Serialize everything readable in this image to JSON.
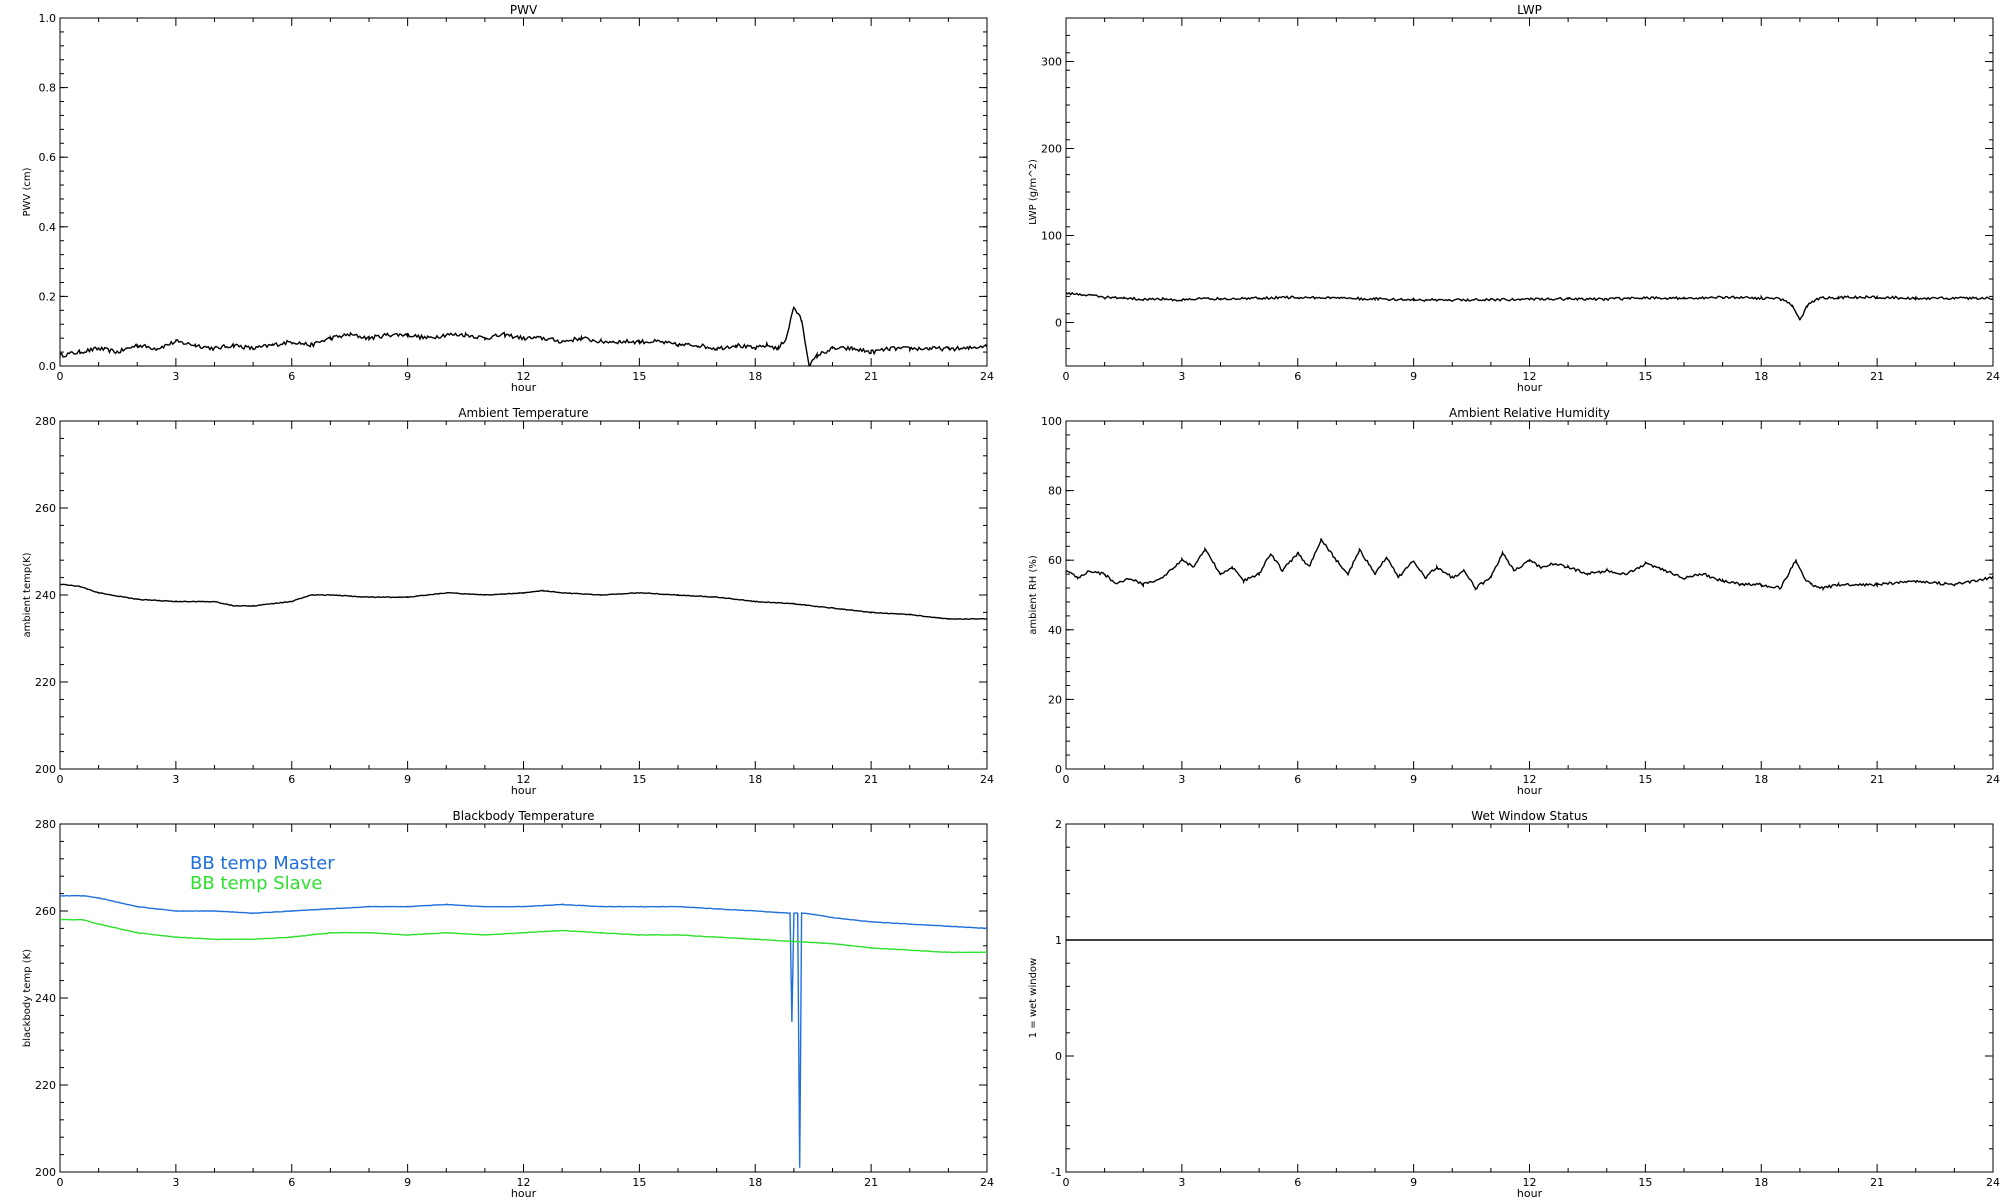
{
  "chart_data": [
    {
      "id": "pwv",
      "type": "line",
      "title": "PWV",
      "xlabel": "hour",
      "ylabel": "PWV (cm)",
      "xlim": [
        0,
        24
      ],
      "ylim": [
        0,
        1.0
      ],
      "xticks": [
        "0",
        "3",
        "6",
        "9",
        "12",
        "15",
        "18",
        "21",
        "24"
      ],
      "yticks": [
        "0.0",
        "0.2",
        "0.4",
        "0.6",
        "0.8",
        "1.0"
      ],
      "series": [
        {
          "color": "#000000",
          "noise": 0.006,
          "x": [
            0,
            0.5,
            1,
            1.5,
            2,
            2.5,
            3,
            3.5,
            4,
            4.5,
            5,
            5.5,
            6,
            6.5,
            7,
            7.5,
            8,
            8.5,
            9,
            9.5,
            10,
            10.5,
            11,
            11.5,
            12,
            12.5,
            13,
            13.5,
            14,
            14.5,
            15,
            15.5,
            16,
            16.5,
            17,
            17.5,
            18,
            18.3,
            18.6,
            18.8,
            19.0,
            19.2,
            19.4,
            19.6,
            20,
            20.5,
            21,
            21.5,
            22,
            22.5,
            23,
            23.5,
            24
          ],
          "y": [
            0.03,
            0.04,
            0.05,
            0.04,
            0.06,
            0.05,
            0.07,
            0.06,
            0.05,
            0.06,
            0.05,
            0.06,
            0.07,
            0.06,
            0.08,
            0.09,
            0.08,
            0.09,
            0.09,
            0.08,
            0.09,
            0.09,
            0.08,
            0.09,
            0.08,
            0.08,
            0.07,
            0.08,
            0.07,
            0.07,
            0.07,
            0.07,
            0.06,
            0.06,
            0.05,
            0.06,
            0.05,
            0.06,
            0.05,
            0.08,
            0.17,
            0.13,
            0.0,
            0.03,
            0.05,
            0.05,
            0.04,
            0.05,
            0.05,
            0.05,
            0.05,
            0.05,
            0.06
          ]
        }
      ]
    },
    {
      "id": "lwp",
      "type": "line",
      "title": "LWP",
      "xlabel": "hour",
      "ylabel": "LWP (g/m^2)",
      "xlim": [
        0,
        24
      ],
      "ylim": [
        -50,
        350
      ],
      "xticks": [
        "0",
        "3",
        "6",
        "9",
        "12",
        "15",
        "18",
        "21",
        "24"
      ],
      "yticks": [
        "0",
        "100",
        "200",
        "300"
      ],
      "series": [
        {
          "color": "#000000",
          "noise": 1.5,
          "x": [
            0,
            0.5,
            1,
            1.5,
            2,
            2.5,
            3,
            3.5,
            4,
            5,
            6,
            7,
            8,
            9,
            10,
            11,
            12,
            13,
            14,
            15,
            16,
            17,
            18,
            18.5,
            18.8,
            19.0,
            19.2,
            19.5,
            20,
            21,
            22,
            23,
            24
          ],
          "y": [
            33,
            32,
            29,
            28,
            27,
            27,
            26,
            28,
            27,
            28,
            29,
            28,
            27,
            26,
            26,
            26,
            27,
            27,
            27,
            28,
            28,
            29,
            28,
            27,
            20,
            2,
            20,
            28,
            29,
            29,
            28,
            28,
            28
          ]
        }
      ]
    },
    {
      "id": "ambient_temp",
      "type": "line",
      "title": "Ambient Temperature",
      "xlabel": "hour",
      "ylabel": "ambient temp(K)",
      "xlim": [
        0,
        24
      ],
      "ylim": [
        200,
        280
      ],
      "xticks": [
        "0",
        "3",
        "6",
        "9",
        "12",
        "15",
        "18",
        "21",
        "24"
      ],
      "yticks": [
        "200",
        "220",
        "240",
        "260",
        "280"
      ],
      "series": [
        {
          "color": "#000000",
          "noise": 0.08,
          "x": [
            0,
            0.5,
            1,
            2,
            3,
            4,
            4.5,
            5,
            6,
            6.5,
            7,
            8,
            9,
            10,
            11,
            12,
            12.5,
            13,
            14,
            15,
            16,
            17,
            18,
            19,
            20,
            21,
            22,
            23,
            24
          ],
          "y": [
            242.5,
            242,
            240.5,
            239,
            238.5,
            238.5,
            237.5,
            237.5,
            238.5,
            240,
            240,
            239.5,
            239.5,
            240.5,
            240,
            240.5,
            241,
            240.5,
            240,
            240.5,
            240,
            239.5,
            238.5,
            238,
            237,
            236,
            235.5,
            234.5,
            234.5
          ]
        }
      ]
    },
    {
      "id": "ambient_rh",
      "type": "line",
      "title": "Ambient Relative Humidity",
      "xlabel": "hour",
      "ylabel": "ambient RH (%)",
      "xlim": [
        0,
        24
      ],
      "ylim": [
        0,
        100
      ],
      "xticks": [
        "0",
        "3",
        "6",
        "9",
        "12",
        "15",
        "18",
        "21",
        "24"
      ],
      "yticks": [
        "0",
        "20",
        "40",
        "60",
        "80",
        "100"
      ],
      "series": [
        {
          "color": "#000000",
          "noise": 0.4,
          "x": [
            0,
            0.3,
            0.6,
            1,
            1.3,
            1.6,
            2,
            2.5,
            3,
            3.3,
            3.6,
            4,
            4.3,
            4.6,
            5,
            5.3,
            5.6,
            6,
            6.3,
            6.6,
            7,
            7.3,
            7.6,
            8,
            8.3,
            8.6,
            9,
            9.3,
            9.6,
            10,
            10.3,
            10.6,
            11,
            11.3,
            11.6,
            12,
            12.3,
            12.6,
            13,
            13.5,
            14,
            14.5,
            15,
            15.5,
            16,
            16.5,
            17,
            17.5,
            18,
            18.5,
            18.9,
            19.1,
            19.3,
            19.6,
            20,
            21,
            22,
            23,
            24
          ],
          "y": [
            57,
            55,
            57,
            56,
            53,
            55,
            53,
            55,
            60,
            58,
            63,
            56,
            58,
            54,
            56,
            62,
            57,
            62,
            58,
            66,
            60,
            56,
            63,
            56,
            61,
            55,
            60,
            55,
            58,
            55,
            57,
            52,
            55,
            62,
            57,
            60,
            58,
            59,
            58,
            56,
            57,
            56,
            59,
            57,
            55,
            56,
            54,
            53,
            53,
            52,
            60,
            55,
            53,
            52,
            53,
            53,
            54,
            53,
            55
          ]
        }
      ]
    },
    {
      "id": "bb_temp",
      "type": "line",
      "title": "Blackbody Temperature",
      "xlabel": "hour",
      "ylabel": "blackbody temp (K)",
      "xlim": [
        0,
        24
      ],
      "ylim": [
        200,
        280
      ],
      "xticks": [
        "0",
        "3",
        "6",
        "9",
        "12",
        "15",
        "18",
        "21",
        "24"
      ],
      "yticks": [
        "200",
        "220",
        "240",
        "260",
        "280"
      ],
      "legend": [
        "BB temp Master",
        "BB temp Slave"
      ],
      "series": [
        {
          "name": "BB temp Master",
          "color": "#1f6fdb",
          "noise": 0.05,
          "x": [
            0,
            0.6,
            1,
            2,
            3,
            4,
            5,
            6,
            7,
            8,
            9,
            10,
            11,
            12,
            13,
            14,
            15,
            16,
            17,
            18,
            18.9,
            18.95,
            19.0,
            19.1,
            19.15,
            19.2,
            19.3,
            20,
            21,
            22,
            23,
            24
          ],
          "y": [
            263.5,
            263.5,
            263,
            261,
            260,
            260,
            259.5,
            260,
            260.5,
            261,
            261,
            261.5,
            261,
            261,
            261.5,
            261,
            261,
            261,
            260.5,
            260,
            259.5,
            234.5,
            259.5,
            259.5,
            201,
            259.5,
            259.5,
            258.5,
            257.5,
            257,
            256.5,
            256
          ]
        },
        {
          "name": "BB temp Slave",
          "color": "#2ee02e",
          "noise": 0.05,
          "x": [
            0,
            0.6,
            1,
            2,
            3,
            4,
            5,
            6,
            7,
            8,
            9,
            10,
            11,
            12,
            13,
            14,
            15,
            16,
            17,
            18,
            19,
            20,
            21,
            22,
            23,
            24
          ],
          "y": [
            258,
            258,
            257,
            255,
            254,
            253.5,
            253.5,
            254,
            255,
            255,
            254.5,
            255,
            254.5,
            255,
            255.5,
            255,
            254.5,
            254.5,
            254,
            253.5,
            253,
            252.5,
            251.5,
            251,
            250.5,
            250.5
          ]
        }
      ]
    },
    {
      "id": "wet_window",
      "type": "line",
      "title": "Wet Window Status",
      "xlabel": "hour",
      "ylabel": "1 = wet window",
      "xlim": [
        0,
        24
      ],
      "ylim": [
        -1,
        2
      ],
      "xticks": [
        "0",
        "3",
        "6",
        "9",
        "12",
        "15",
        "18",
        "21",
        "24"
      ],
      "yticks": [
        "-1",
        "0",
        "1",
        "2"
      ],
      "series": [
        {
          "color": "#000000",
          "noise": 0,
          "x": [
            0,
            24
          ],
          "y": [
            1,
            1
          ]
        }
      ]
    }
  ]
}
